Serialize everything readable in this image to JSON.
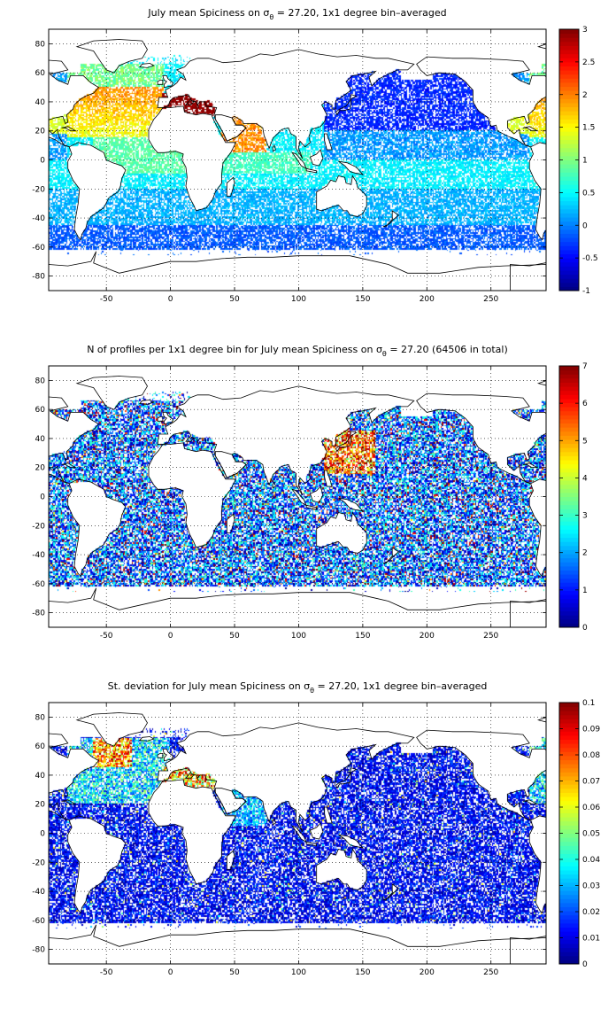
{
  "panels": [
    {
      "title": "July mean Spiciness on σθ = 27.20, 1x1 degree bin–averaged",
      "title_parts": {
        "pre": "July mean Spiciness on σ",
        "sub": "θ",
        "post": " = 27.20, 1x1 degree bin–averaged"
      },
      "colorbar": {
        "min": -1,
        "max": 3,
        "ticks": [
          "-1",
          "-0.5",
          "0",
          "0.5",
          "1",
          "1.5",
          "2",
          "2.5",
          "3"
        ]
      },
      "field": "spice"
    },
    {
      "title": "N of profiles per 1x1 degree bin for July mean Spiciness on σθ = 27.20 (64506 in total)",
      "title_parts": {
        "pre": "N of profiles per 1x1 degree bin for July mean Spiciness on σ",
        "sub": "θ",
        "post": " = 27.20 (64506 in total)"
      },
      "colorbar": {
        "min": 0,
        "max": 7,
        "ticks": [
          "0",
          "1",
          "2",
          "3",
          "4",
          "5",
          "6",
          "7"
        ]
      },
      "field": "count"
    },
    {
      "title": "St. deviation for July mean Spiciness on σθ = 27.20, 1x1 degree bin–averaged",
      "title_parts": {
        "pre": "St. deviation for July mean Spiciness on σ",
        "sub": "θ",
        "post": " = 27.20, 1x1 degree bin–averaged"
      },
      "colorbar": {
        "min": 0,
        "max": 0.1,
        "ticks": [
          "0",
          "0.01",
          "0.02",
          "0.03",
          "0.04",
          "0.05",
          "0.06",
          "0.07",
          "0.08",
          "0.09",
          "0.1"
        ]
      },
      "field": "std"
    }
  ],
  "axes": {
    "lon_range": [
      -95,
      293
    ],
    "lat_range": [
      -90,
      90
    ],
    "x_ticks": [
      "-50",
      "0",
      "50",
      "100",
      "150",
      "200",
      "250"
    ],
    "y_ticks": [
      "80",
      "60",
      "40",
      "20",
      "0",
      "-20",
      "-40",
      "-60",
      "-80"
    ],
    "grid": "dotted"
  },
  "colormap": "jet"
}
